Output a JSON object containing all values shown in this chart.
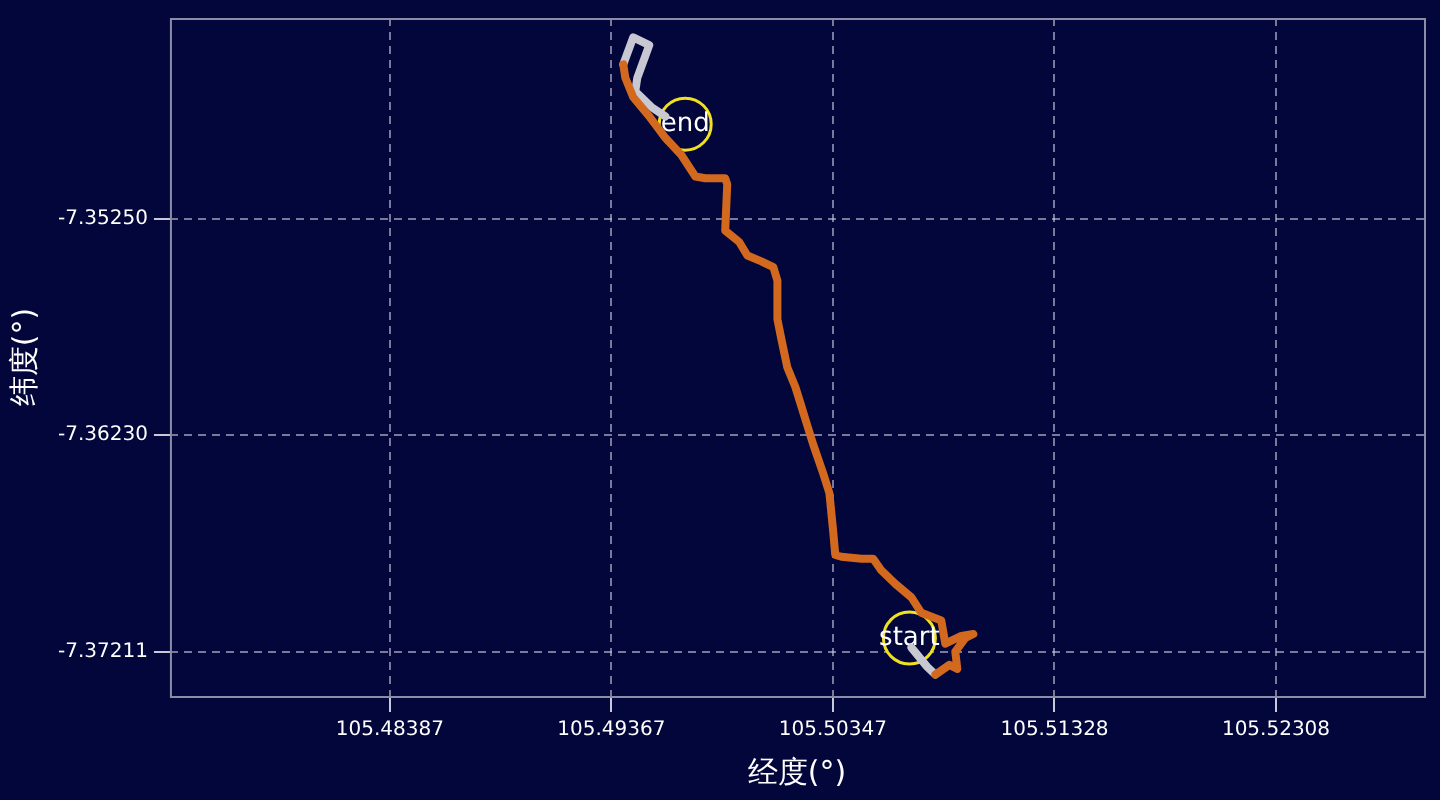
{
  "chart_data": {
    "type": "line",
    "xlabel": "经度(°)",
    "ylabel": "纬度(°)",
    "xlim": [
      105.47414,
      105.52963
    ],
    "ylim": [
      -7.37412,
      -7.3434
    ],
    "xticks": [
      105.48387,
      105.49367,
      105.50347,
      105.51328,
      105.52308
    ],
    "yticks": [
      {
        "value": -7.3525,
        "label": "-7.35250"
      },
      {
        "value": -7.3623,
        "label": "-7.36230"
      },
      -7.37211
    ],
    "grid": true,
    "line_style": "solid",
    "series": [
      {
        "type": "line",
        "color": "#d2691e",
        "x": [
          105.50801,
          105.50863,
          105.50898,
          105.50889,
          105.50934,
          105.50969,
          105.50916,
          105.50845,
          105.50827,
          105.50739,
          105.50695,
          105.50624,
          105.50562,
          105.50526,
          105.50474,
          105.50385,
          105.50358,
          105.50349,
          105.50332,
          105.50305,
          105.50261,
          105.50234,
          105.50208,
          105.50181,
          105.50146,
          105.50119,
          105.50102,
          105.50102,
          105.50084,
          105.50031,
          105.49969,
          105.49933,
          105.49871,
          105.4988,
          105.49871,
          105.49783,
          105.49739,
          105.49677,
          105.49606,
          105.49535,
          105.49464,
          105.49429,
          105.4942
        ],
        "values": [
          -7.37315,
          -7.37271,
          -7.37289,
          -7.37211,
          -7.37149,
          -7.37131,
          -7.3714,
          -7.37175,
          -7.3707,
          -7.37035,
          -7.36965,
          -7.36904,
          -7.36843,
          -7.3679,
          -7.3679,
          -7.36781,
          -7.36773,
          -7.36668,
          -7.36493,
          -7.36405,
          -7.36274,
          -7.36186,
          -7.36099,
          -7.36011,
          -7.35924,
          -7.35793,
          -7.35705,
          -7.3553,
          -7.35469,
          -7.35443,
          -7.35416,
          -7.35355,
          -7.35303,
          -7.35093,
          -7.35066,
          -7.35066,
          -7.35058,
          -7.34961,
          -7.34883,
          -7.34786,
          -7.34699,
          -7.34611,
          -7.3455
        ]
      },
      {
        "type": "line",
        "color": "#c8c8d2",
        "x": [
          105.50695,
          105.50765,
          105.50801,
          105.5,
          105.4942,
          105.49464,
          105.49535,
          105.49482,
          105.49473,
          105.49544,
          105.49606
        ],
        "values": [
          -7.37193,
          -7.3728,
          -7.37315,
          null,
          -7.3455,
          -7.34428,
          -7.34463,
          -7.34611,
          -7.34673,
          -7.34743,
          -7.34786
        ]
      }
    ],
    "annotations": [
      {
        "text": "end",
        "x": 105.49694,
        "y": -7.34821
      },
      {
        "text": "start",
        "x": 105.50686,
        "y": -7.37149
      }
    ]
  }
}
